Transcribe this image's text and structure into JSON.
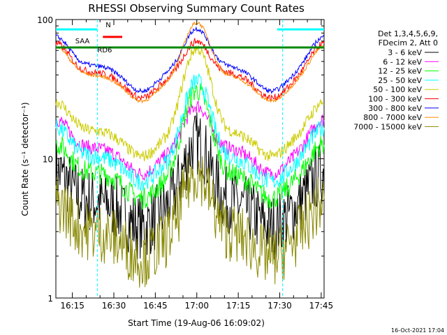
{
  "chart_data": {
    "type": "line",
    "title": "RHESSI Observing Summary Count Rates",
    "xlabel": "Start Time (19-Aug-06 16:09:02)",
    "ylabel": "Count Rate (s⁻¹ detector⁻¹)",
    "y_scale": "log",
    "ylim": [
      1,
      100
    ],
    "y_ticks": [
      "1",
      "10",
      "100"
    ],
    "x_ticks": [
      "16:15",
      "16:30",
      "16:45",
      "17:00",
      "17:15",
      "17:30",
      "17:45"
    ],
    "xlim_minutes_after_start": [
      0,
      97
    ],
    "legend_header": [
      "Det 1,3,4,5,6,9,",
      "FDecim 2, Att 0"
    ],
    "timestamp": "16-Oct-2021 17:04",
    "annotations": {
      "N": "N",
      "SAA": "SAA",
      "RD": "RD6"
    },
    "series": [
      {
        "name": "3 - 6 keV",
        "color": "#000000",
        "base": 5.0,
        "peak": 13,
        "noise": 0.55
      },
      {
        "name": "6 - 12 keV",
        "color": "#ff00ff",
        "base": 12,
        "peak": 24,
        "noise": 0.12
      },
      {
        "name": "12 - 25 keV",
        "color": "#00ff00",
        "base": 8.0,
        "peak": 31,
        "noise": 0.18
      },
      {
        "name": "25 - 50 keV",
        "color": "#00ffff",
        "base": 10.5,
        "peak": 36,
        "noise": 0.15
      },
      {
        "name": "50 - 100 keV",
        "color": "#cccc00",
        "base": 16,
        "peak": 62,
        "noise": 0.1
      },
      {
        "name": "100 - 300 keV",
        "color": "#ff0000",
        "base": 42,
        "peak": 70,
        "noise": 0.06
      },
      {
        "name": "300 - 800 keV",
        "color": "#0000ff",
        "base": 47,
        "peak": 86,
        "noise": 0.04
      },
      {
        "name": "800 - 7000 keV",
        "color": "#ff8800",
        "base": 40,
        "peak": 95,
        "noise": 0.03
      },
      {
        "name": "7000 - 15000 keV",
        "color": "#888800",
        "base": 3.0,
        "peak": 8,
        "noise": 0.5
      }
    ]
  }
}
